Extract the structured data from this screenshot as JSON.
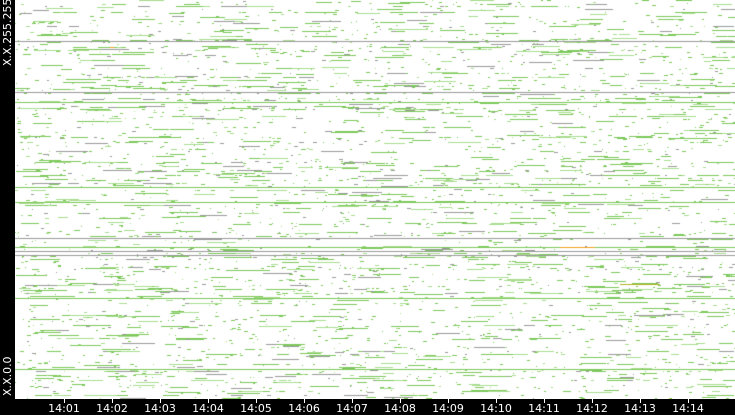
{
  "y_axis": {
    "top_label": "X.X.255.255",
    "bottom_label": "X.X.0.0"
  },
  "x_axis": {
    "ticks": [
      "14:01",
      "14:02",
      "14:03",
      "14:04",
      "14:05",
      "14:06",
      "14:07",
      "14:08",
      "14:09",
      "14:10",
      "14:11",
      "14:12",
      "14:13",
      "14:14"
    ]
  },
  "colors": {
    "flow": "#7cc85a",
    "flow_light": "#a9dc8f",
    "gray": "#9a9a9a",
    "highlight": "#f0a020",
    "background": "#ffffff",
    "axis": "#000000"
  }
}
